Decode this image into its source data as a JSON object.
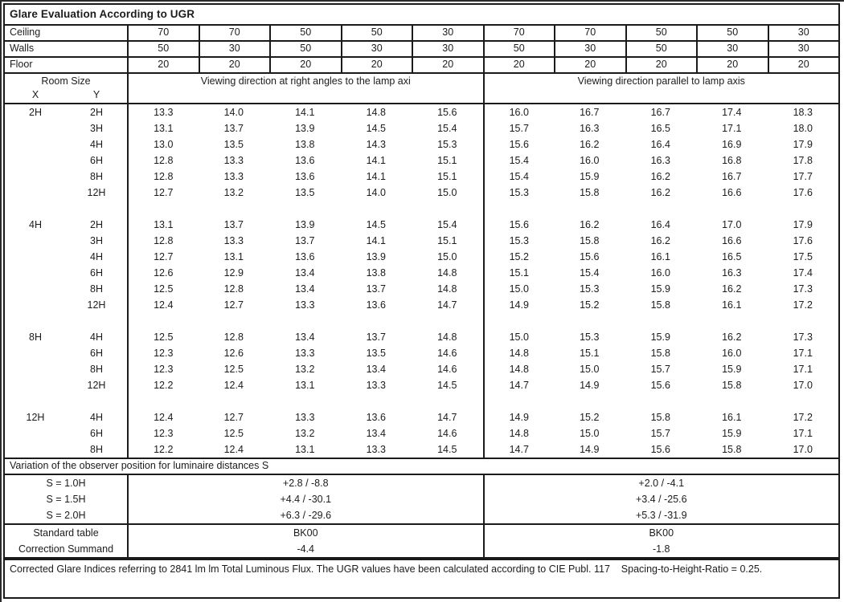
{
  "title": "Glare Evaluation According to UGR",
  "surface_rows": [
    {
      "label": "Ceiling",
      "values": [
        "70",
        "70",
        "50",
        "50",
        "30",
        "70",
        "70",
        "50",
        "50",
        "30"
      ]
    },
    {
      "label": "Walls",
      "values": [
        "50",
        "30",
        "50",
        "30",
        "30",
        "50",
        "30",
        "50",
        "30",
        "30"
      ]
    },
    {
      "label": "Floor",
      "values": [
        "20",
        "20",
        "20",
        "20",
        "20",
        "20",
        "20",
        "20",
        "20",
        "20"
      ]
    }
  ],
  "header": {
    "room_size": "Room Size",
    "x": "X",
    "y": "Y",
    "left_heading": "Viewing direction at right angles to the lamp axi",
    "right_heading": "Viewing direction parallel to lamp axis"
  },
  "blocks": [
    {
      "x": "2H",
      "rows": [
        {
          "y": "2H",
          "values": [
            "13.3",
            "14.0",
            "14.1",
            "14.8",
            "15.6",
            "16.0",
            "16.7",
            "16.7",
            "17.4",
            "18.3"
          ]
        },
        {
          "y": "3H",
          "values": [
            "13.1",
            "13.7",
            "13.9",
            "14.5",
            "15.4",
            "15.7",
            "16.3",
            "16.5",
            "17.1",
            "18.0"
          ]
        },
        {
          "y": "4H",
          "values": [
            "13.0",
            "13.5",
            "13.8",
            "14.3",
            "15.3",
            "15.6",
            "16.2",
            "16.4",
            "16.9",
            "17.9"
          ]
        },
        {
          "y": "6H",
          "values": [
            "12.8",
            "13.3",
            "13.6",
            "14.1",
            "15.1",
            "15.4",
            "16.0",
            "16.3",
            "16.8",
            "17.8"
          ]
        },
        {
          "y": "8H",
          "values": [
            "12.8",
            "13.3",
            "13.6",
            "14.1",
            "15.1",
            "15.4",
            "15.9",
            "16.2",
            "16.7",
            "17.7"
          ]
        },
        {
          "y": "12H",
          "values": [
            "12.7",
            "13.2",
            "13.5",
            "14.0",
            "15.0",
            "15.3",
            "15.8",
            "16.2",
            "16.6",
            "17.6"
          ]
        }
      ]
    },
    {
      "x": "4H",
      "rows": [
        {
          "y": "2H",
          "values": [
            "13.1",
            "13.7",
            "13.9",
            "14.5",
            "15.4",
            "15.6",
            "16.2",
            "16.4",
            "17.0",
            "17.9"
          ]
        },
        {
          "y": "3H",
          "values": [
            "12.8",
            "13.3",
            "13.7",
            "14.1",
            "15.1",
            "15.3",
            "15.8",
            "16.2",
            "16.6",
            "17.6"
          ]
        },
        {
          "y": "4H",
          "values": [
            "12.7",
            "13.1",
            "13.6",
            "13.9",
            "15.0",
            "15.2",
            "15.6",
            "16.1",
            "16.5",
            "17.5"
          ]
        },
        {
          "y": "6H",
          "values": [
            "12.6",
            "12.9",
            "13.4",
            "13.8",
            "14.8",
            "15.1",
            "15.4",
            "16.0",
            "16.3",
            "17.4"
          ]
        },
        {
          "y": "8H",
          "values": [
            "12.5",
            "12.8",
            "13.4",
            "13.7",
            "14.8",
            "15.0",
            "15.3",
            "15.9",
            "16.2",
            "17.3"
          ]
        },
        {
          "y": "12H",
          "values": [
            "12.4",
            "12.7",
            "13.3",
            "13.6",
            "14.7",
            "14.9",
            "15.2",
            "15.8",
            "16.1",
            "17.2"
          ]
        }
      ]
    },
    {
      "x": "8H",
      "rows": [
        {
          "y": "4H",
          "values": [
            "12.5",
            "12.8",
            "13.4",
            "13.7",
            "14.8",
            "15.0",
            "15.3",
            "15.9",
            "16.2",
            "17.3"
          ]
        },
        {
          "y": "6H",
          "values": [
            "12.3",
            "12.6",
            "13.3",
            "13.5",
            "14.6",
            "14.8",
            "15.1",
            "15.8",
            "16.0",
            "17.1"
          ]
        },
        {
          "y": "8H",
          "values": [
            "12.3",
            "12.5",
            "13.2",
            "13.4",
            "14.6",
            "14.8",
            "15.0",
            "15.7",
            "15.9",
            "17.1"
          ]
        },
        {
          "y": "12H",
          "values": [
            "12.2",
            "12.4",
            "13.1",
            "13.3",
            "14.5",
            "14.7",
            "14.9",
            "15.6",
            "15.8",
            "17.0"
          ]
        }
      ]
    },
    {
      "x": "12H",
      "rows": [
        {
          "y": "4H",
          "values": [
            "12.4",
            "12.7",
            "13.3",
            "13.6",
            "14.7",
            "14.9",
            "15.2",
            "15.8",
            "16.1",
            "17.2"
          ]
        },
        {
          "y": "6H",
          "values": [
            "12.3",
            "12.5",
            "13.2",
            "13.4",
            "14.6",
            "14.8",
            "15.0",
            "15.7",
            "15.9",
            "17.1"
          ]
        },
        {
          "y": "8H",
          "values": [
            "12.2",
            "12.4",
            "13.1",
            "13.3",
            "14.5",
            "14.7",
            "14.9",
            "15.6",
            "15.8",
            "17.0"
          ]
        }
      ]
    }
  ],
  "variation_heading": "Variation of the observer position for luminaire distances S",
  "variation_rows": [
    {
      "label": "S = 1.0H",
      "left": "+2.8 / -8.8",
      "right": "+2.0 / -4.1"
    },
    {
      "label": "S = 1.5H",
      "left": "+4.4 / -30.1",
      "right": "+3.4 / -25.6"
    },
    {
      "label": "S = 2.0H",
      "left": "+6.3 / -29.6",
      "right": "+5.3 / -31.9"
    }
  ],
  "summary_rows": [
    {
      "label": "Standard table",
      "left": "BK00",
      "right": "BK00"
    },
    {
      "label": "Correction Summand",
      "left": "-4.4",
      "right": "-1.8"
    }
  ],
  "footer": "Corrected Glare Indices referring to 2841 lm lm Total Luminous Flux. The UGR values have been calculated according to CIE Publ. 117    Spacing-to-Height-Ratio = 0.25."
}
